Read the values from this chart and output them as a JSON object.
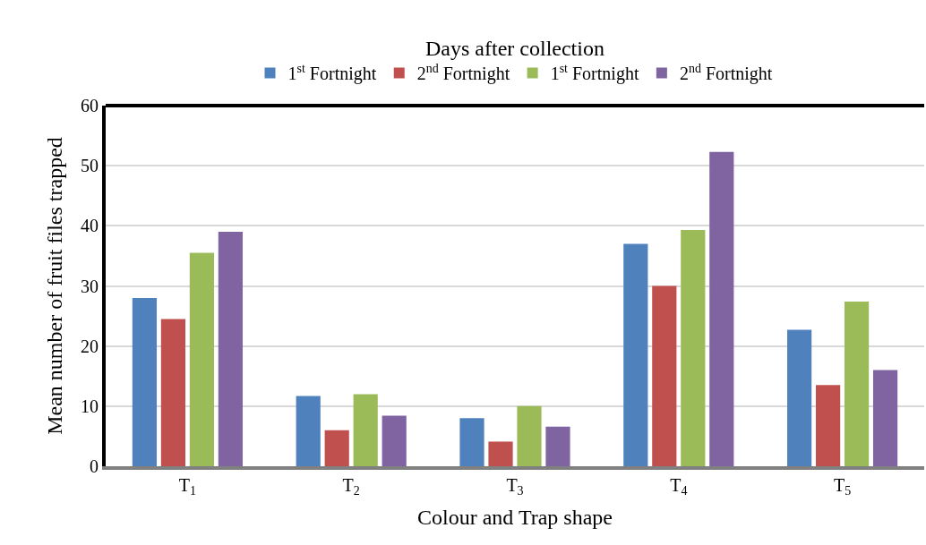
{
  "chart_data": {
    "type": "bar",
    "legend_title": "Days after collection",
    "xlabel": "Colour and Trap shape",
    "ylabel": "Mean number of fruit files trapped",
    "categories": [
      "T$_{1}$",
      "T$_{2}$",
      "T$_{3}$",
      "T$_{4}$",
      "T$_{5}$"
    ],
    "series": [
      {
        "name": "1$^{st}$ Fortnight",
        "color": "#4f81bd",
        "values": [
          28,
          11.7,
          8,
          37,
          22.7
        ]
      },
      {
        "name": "2$^{nd}$ Fortnight",
        "color": "#c0504d",
        "values": [
          24.5,
          6,
          4.1,
          30,
          13.5
        ]
      },
      {
        "name": "1$^{st}$ Fortnight",
        "color": "#9bbb59",
        "values": [
          35.5,
          12,
          10,
          39.3,
          27.4
        ]
      },
      {
        "name": "2$^{nd}$ Fortnight",
        "color": "#8064a2",
        "values": [
          39,
          8.4,
          6.6,
          52.3,
          16
        ]
      }
    ],
    "ylim": [
      0,
      60
    ],
    "yticks": [
      0,
      10,
      20,
      30,
      40,
      50,
      60
    ],
    "grid": "y",
    "legend": "top"
  }
}
